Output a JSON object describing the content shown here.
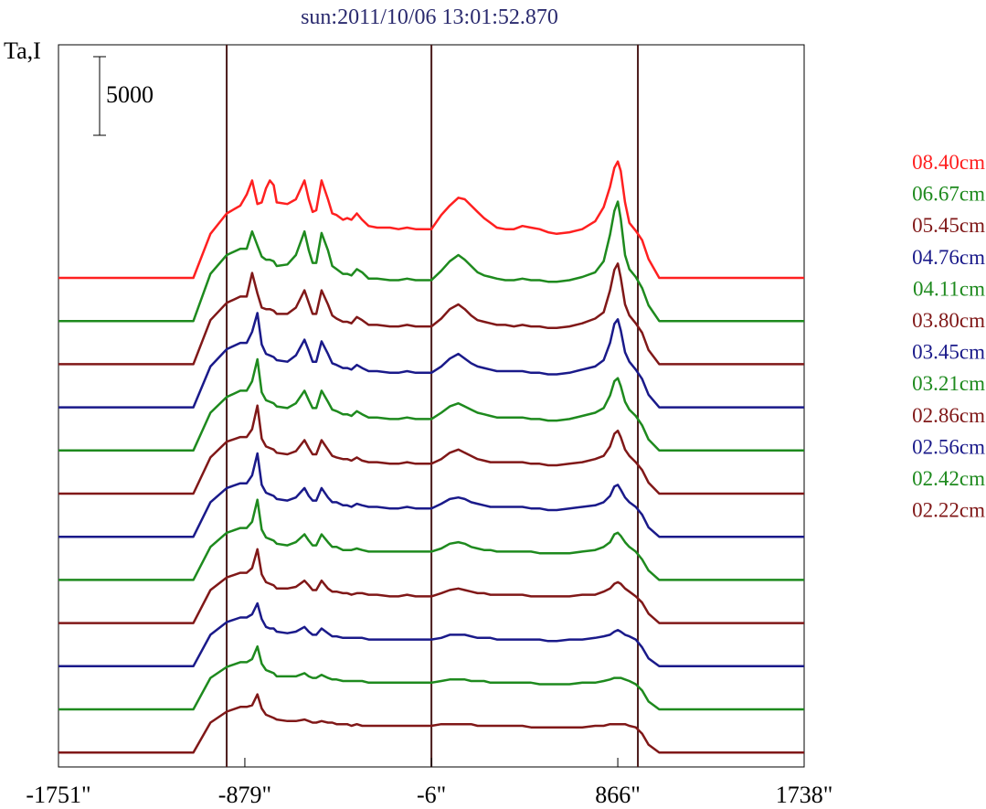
{
  "chart_data": {
    "type": "line",
    "title": "sun:2011/10/06 13:01:52.870",
    "ylabel": "Ta,I",
    "xlabel": "",
    "scale_bar": {
      "label": "5000",
      "value": 5000
    },
    "xlim": [
      -1751,
      1738
    ],
    "x_ticks": [
      {
        "value": -1751,
        "label": "-1751\""
      },
      {
        "value": -879,
        "label": "-879\""
      },
      {
        "value": -6,
        "label": "-6\""
      },
      {
        "value": 866,
        "label": "866\""
      },
      {
        "value": 1738,
        "label": "1738\""
      }
    ],
    "vertical_lines": [
      -964,
      -6,
      960
    ],
    "vertical_line_color": "#4a1a1a",
    "grid": false,
    "legend_position": "right",
    "profile_x": [
      -1751,
      -1120,
      -1040,
      -964,
      -900,
      -870,
      -845,
      -820,
      -800,
      -780,
      -762,
      -744,
      -730,
      -680,
      -640,
      -600,
      -580,
      -562,
      -545,
      -520,
      -490,
      -470,
      -450,
      -420,
      -400,
      -380,
      -355,
      -330,
      -300,
      -260,
      -200,
      -160,
      -120,
      -80,
      -40,
      -6,
      40,
      80,
      120,
      150,
      180,
      210,
      240,
      270,
      300,
      340,
      380,
      420,
      460,
      500,
      540,
      580,
      640,
      700,
      760,
      800,
      830,
      850,
      866,
      880,
      900,
      920,
      950,
      980,
      1010,
      1060,
      1120,
      1650,
      1700,
      1738
    ],
    "series": [
      {
        "name": "08.40cm",
        "color": "#ff2020",
        "base": 0,
        "y": [
          0,
          0,
          2800,
          4100,
          4600,
          5300,
          6200,
          4700,
          4800,
          5700,
          6200,
          5900,
          4800,
          4700,
          5000,
          6200,
          5000,
          4200,
          4300,
          6200,
          5000,
          4100,
          4000,
          3700,
          3800,
          3700,
          4100,
          3700,
          3300,
          3200,
          3200,
          3100,
          3200,
          3100,
          3100,
          3100,
          4000,
          4600,
          5100,
          5000,
          4600,
          4200,
          3800,
          3500,
          3200,
          3100,
          3100,
          3300,
          3200,
          3100,
          2900,
          2800,
          2900,
          3100,
          3600,
          4500,
          5800,
          7000,
          7400,
          6800,
          4800,
          3500,
          3000,
          2400,
          1200,
          0,
          0,
          0,
          0,
          0
        ]
      },
      {
        "name": "06.67cm",
        "color": "#1e8a1e",
        "base": 1,
        "y": [
          0,
          0,
          3000,
          4200,
          4600,
          4600,
          5700,
          4800,
          4100,
          3900,
          3900,
          3800,
          3500,
          3600,
          4200,
          5700,
          4500,
          3700,
          3700,
          5600,
          4500,
          3500,
          3300,
          3000,
          3000,
          2900,
          3300,
          3100,
          2700,
          2700,
          2600,
          2600,
          2700,
          2600,
          2600,
          2600,
          3200,
          3800,
          4200,
          3900,
          3500,
          3100,
          2900,
          2800,
          2700,
          2600,
          2600,
          2700,
          2600,
          2600,
          2500,
          2500,
          2600,
          2800,
          3100,
          3800,
          5500,
          7000,
          7600,
          6500,
          4200,
          3300,
          2800,
          2100,
          1000,
          0,
          0,
          0,
          0,
          0
        ]
      },
      {
        "name": "05.45cm",
        "color": "#801818",
        "base": 2,
        "y": [
          0,
          0,
          2800,
          3900,
          4300,
          4300,
          5800,
          4500,
          3600,
          3500,
          3500,
          3400,
          3200,
          3200,
          3600,
          4700,
          3900,
          3200,
          3200,
          4700,
          3800,
          3100,
          2900,
          2700,
          2700,
          2600,
          3000,
          2800,
          2500,
          2500,
          2400,
          2400,
          2500,
          2400,
          2400,
          2400,
          2900,
          3500,
          3800,
          3500,
          3100,
          2800,
          2700,
          2600,
          2500,
          2500,
          2400,
          2500,
          2400,
          2400,
          2300,
          2300,
          2400,
          2600,
          2900,
          3300,
          4700,
          6000,
          6400,
          5500,
          3800,
          3100,
          2600,
          2000,
          900,
          0,
          0,
          0,
          0,
          0
        ]
      },
      {
        "name": "04.76cm",
        "color": "#1a1a8a",
        "base": 3,
        "y": [
          0,
          0,
          2600,
          3700,
          4100,
          4100,
          4800,
          6000,
          4000,
          3400,
          3300,
          3200,
          3000,
          2900,
          3300,
          4300,
          3600,
          2900,
          2900,
          4200,
          3400,
          2800,
          2700,
          2500,
          2500,
          2400,
          2700,
          2500,
          2300,
          2300,
          2200,
          2200,
          2300,
          2200,
          2200,
          2200,
          2600,
          3100,
          3400,
          3100,
          2800,
          2600,
          2500,
          2400,
          2300,
          2300,
          2300,
          2300,
          2200,
          2200,
          2100,
          2100,
          2200,
          2400,
          2600,
          3000,
          4100,
          5300,
          5600,
          4900,
          3500,
          2900,
          2400,
          1800,
          800,
          0,
          0,
          0,
          0,
          0
        ]
      },
      {
        "name": "04.11cm",
        "color": "#1e8a1e",
        "base": 4,
        "y": [
          0,
          0,
          2400,
          3400,
          3800,
          3800,
          4400,
          5800,
          3700,
          3200,
          3100,
          3000,
          2800,
          2700,
          3000,
          3800,
          3200,
          2700,
          2700,
          3800,
          3100,
          2600,
          2500,
          2300,
          2300,
          2200,
          2500,
          2300,
          2100,
          2100,
          2000,
          2000,
          2100,
          2000,
          2000,
          2000,
          2400,
          2800,
          3000,
          2800,
          2600,
          2400,
          2300,
          2200,
          2100,
          2100,
          2100,
          2100,
          2000,
          2000,
          1900,
          1900,
          2000,
          2200,
          2400,
          2700,
          3500,
          4400,
          4600,
          4100,
          3100,
          2600,
          2200,
          1600,
          700,
          0,
          0,
          0,
          0,
          0
        ]
      },
      {
        "name": "03.80cm",
        "color": "#801818",
        "base": 5,
        "y": [
          0,
          0,
          2300,
          3300,
          3600,
          3600,
          4100,
          5600,
          3500,
          3000,
          2900,
          2800,
          2600,
          2500,
          2700,
          3400,
          2900,
          2500,
          2500,
          3400,
          2800,
          2400,
          2300,
          2200,
          2200,
          2100,
          2300,
          2100,
          2000,
          2000,
          1900,
          1900,
          2000,
          1900,
          1900,
          1900,
          2200,
          2600,
          2800,
          2600,
          2400,
          2200,
          2100,
          2000,
          2000,
          2000,
          2000,
          2000,
          1900,
          1900,
          1800,
          1800,
          1900,
          2000,
          2200,
          2400,
          3000,
          3800,
          4000,
          3600,
          2800,
          2400,
          2000,
          1500,
          700,
          0,
          0,
          0,
          0,
          0
        ]
      },
      {
        "name": "03.45cm",
        "color": "#1a1a8a",
        "base": 6,
        "y": [
          0,
          0,
          2200,
          3100,
          3400,
          3400,
          3900,
          5300,
          3300,
          2800,
          2700,
          2600,
          2400,
          2300,
          2500,
          3100,
          2600,
          2300,
          2300,
          3100,
          2500,
          2200,
          2200,
          2000,
          2000,
          1900,
          2100,
          2000,
          1900,
          1900,
          1800,
          1800,
          1900,
          1800,
          1800,
          1800,
          2100,
          2400,
          2500,
          2400,
          2200,
          2100,
          2000,
          1900,
          1900,
          1900,
          1900,
          1900,
          1800,
          1800,
          1700,
          1700,
          1800,
          1900,
          2000,
          2200,
          2600,
          3200,
          3300,
          3000,
          2500,
          2200,
          1900,
          1400,
          600,
          0,
          0,
          0,
          0,
          0
        ]
      },
      {
        "name": "03.21cm",
        "color": "#1e8a1e",
        "base": 7,
        "y": [
          0,
          0,
          2100,
          3000,
          3300,
          3300,
          3700,
          5100,
          3200,
          2700,
          2600,
          2500,
          2300,
          2200,
          2400,
          2900,
          2500,
          2200,
          2200,
          2900,
          2400,
          2100,
          2100,
          1900,
          1900,
          1900,
          2000,
          1900,
          1800,
          1800,
          1800,
          1800,
          1800,
          1800,
          1800,
          1800,
          2000,
          2300,
          2400,
          2300,
          2100,
          2000,
          1900,
          1900,
          1800,
          1800,
          1800,
          1800,
          1800,
          1700,
          1700,
          1700,
          1700,
          1800,
          1900,
          2100,
          2400,
          2900,
          3000,
          2800,
          2400,
          2100,
          1800,
          1300,
          600,
          0,
          0,
          0,
          0,
          0
        ]
      },
      {
        "name": "02.86cm",
        "color": "#801818",
        "base": 8,
        "y": [
          0,
          0,
          2100,
          2900,
          3200,
          3200,
          3500,
          4700,
          3100,
          2600,
          2500,
          2400,
          2200,
          2200,
          2300,
          2700,
          2400,
          2100,
          2100,
          2700,
          2200,
          2000,
          2000,
          1900,
          1900,
          1800,
          1900,
          1900,
          1800,
          1800,
          1700,
          1700,
          1800,
          1700,
          1700,
          1700,
          1900,
          2100,
          2200,
          2100,
          2000,
          1900,
          1900,
          1800,
          1800,
          1800,
          1800,
          1800,
          1700,
          1700,
          1700,
          1700,
          1700,
          1800,
          1800,
          2000,
          2200,
          2500,
          2600,
          2500,
          2200,
          2000,
          1700,
          1300,
          600,
          0,
          0,
          0,
          0,
          0
        ]
      },
      {
        "name": "02.56cm",
        "color": "#1a1a8a",
        "base": 9,
        "y": [
          0,
          0,
          2000,
          2800,
          3100,
          3100,
          3300,
          4000,
          3000,
          2500,
          2400,
          2400,
          2200,
          2100,
          2200,
          2500,
          2200,
          2000,
          2000,
          2400,
          2100,
          1900,
          1900,
          1800,
          1800,
          1800,
          1800,
          1800,
          1700,
          1700,
          1700,
          1700,
          1700,
          1700,
          1700,
          1700,
          1800,
          2000,
          2000,
          2000,
          1900,
          1800,
          1800,
          1800,
          1700,
          1700,
          1700,
          1700,
          1700,
          1700,
          1600,
          1600,
          1700,
          1700,
          1800,
          1900,
          2000,
          2200,
          2300,
          2200,
          2000,
          1900,
          1700,
          1200,
          500,
          0,
          0,
          0,
          0,
          0
        ]
      },
      {
        "name": "02.42cm",
        "color": "#1e8a1e",
        "base": 10,
        "y": [
          0,
          0,
          2000,
          2700,
          3000,
          3000,
          3200,
          4000,
          2900,
          2500,
          2400,
          2300,
          2100,
          2100,
          2100,
          2300,
          2100,
          2000,
          2000,
          2200,
          2000,
          1900,
          1900,
          1800,
          1800,
          1800,
          1800,
          1800,
          1700,
          1700,
          1700,
          1700,
          1700,
          1700,
          1700,
          1700,
          1800,
          1900,
          1900,
          1900,
          1800,
          1800,
          1800,
          1700,
          1700,
          1700,
          1700,
          1700,
          1700,
          1600,
          1600,
          1600,
          1600,
          1700,
          1700,
          1800,
          1900,
          2000,
          2000,
          2000,
          1900,
          1800,
          1600,
          1200,
          500,
          0,
          0,
          0,
          0,
          0
        ]
      },
      {
        "name": "02.22cm",
        "color": "#801818",
        "base": 11,
        "y": [
          0,
          0,
          1900,
          2600,
          2900,
          2900,
          3000,
          3700,
          2800,
          2400,
          2300,
          2200,
          2100,
          2000,
          2000,
          2100,
          2000,
          1900,
          1900,
          2000,
          1900,
          1900,
          1800,
          1800,
          1800,
          1700,
          1800,
          1700,
          1700,
          1700,
          1700,
          1700,
          1700,
          1700,
          1700,
          1700,
          1800,
          1800,
          1800,
          1800,
          1800,
          1700,
          1700,
          1700,
          1700,
          1700,
          1700,
          1700,
          1600,
          1600,
          1600,
          1600,
          1600,
          1600,
          1700,
          1700,
          1800,
          1800,
          1800,
          1800,
          1800,
          1700,
          1600,
          1200,
          500,
          0,
          0,
          0,
          0,
          0
        ]
      }
    ]
  }
}
